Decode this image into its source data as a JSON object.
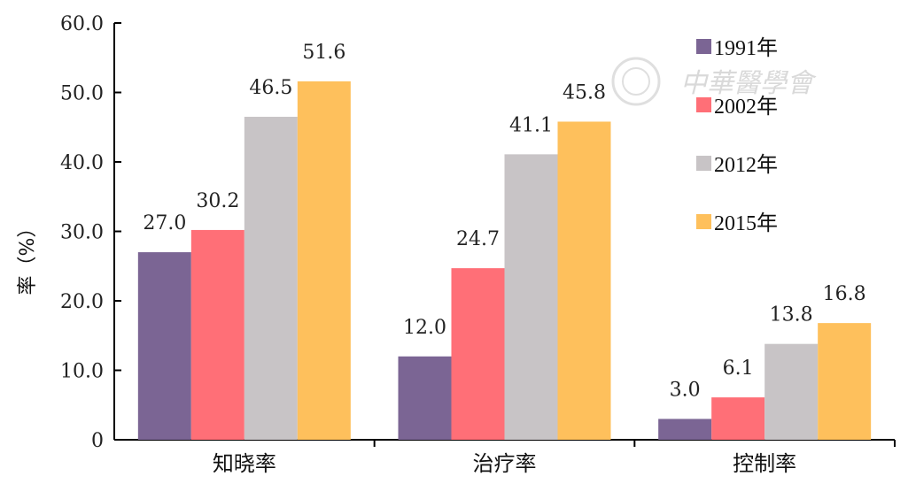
{
  "chart_data": {
    "type": "bar",
    "ylabel": "率（%）",
    "ylim": [
      0,
      60
    ],
    "yticks": [
      "0",
      "10.0",
      "20.0",
      "30.0",
      "40.0",
      "50.0",
      "60.0"
    ],
    "grid": false,
    "legend_position": "top-right",
    "categories": [
      "知晓率",
      "治疗率",
      "控制率"
    ],
    "series": [
      {
        "name": "1991年",
        "color": "#7b6594",
        "values": [
          27.0,
          12.0,
          3.0
        ],
        "labels": [
          "27.0",
          "12.0",
          "3.0"
        ]
      },
      {
        "name": "2002年",
        "color": "#ff6f77",
        "values": [
          30.2,
          24.7,
          6.1
        ],
        "labels": [
          "30.2",
          "24.7",
          "6.1"
        ]
      },
      {
        "name": "2012年",
        "color": "#c8c4c6",
        "values": [
          46.5,
          41.1,
          13.8
        ],
        "labels": [
          "46.5",
          "41.1",
          "13.8"
        ]
      },
      {
        "name": "2015年",
        "color": "#fec05c",
        "values": [
          51.6,
          45.8,
          16.8
        ],
        "labels": [
          "51.6",
          "45.8",
          "16.8"
        ]
      }
    ]
  },
  "watermark": {
    "text": "中華醫學會"
  }
}
